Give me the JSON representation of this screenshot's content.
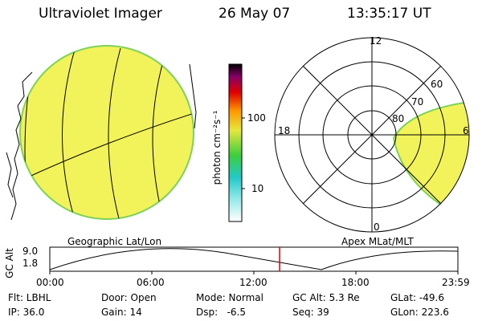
{
  "header": {
    "instrument": "Ultraviolet Imager",
    "date": "26 May 07",
    "time": "13:35:17 UT"
  },
  "colorbar": {
    "label": "photon cm⁻²s⁻¹",
    "ticks": [
      "100",
      "10"
    ]
  },
  "map_labels": {
    "left": "Geographic Lat/Lon",
    "right": "Apex MLat/MLT"
  },
  "polar": {
    "mlt_labels": [
      "12",
      "18",
      "6",
      "0"
    ],
    "lat_labels": [
      "60",
      "70",
      "80"
    ]
  },
  "altitude_plot": {
    "ylabel": "GC Alt",
    "yticks": [
      "9.0",
      "1.8"
    ],
    "xticks": [
      "00:00",
      "06:00",
      "12:00",
      "18:00",
      "23:59"
    ],
    "current_time_marker": "13:35"
  },
  "info": {
    "filter": "Flt: LBHL",
    "ip": "IP: 36.0",
    "door": "Door: Open",
    "gain": "Gain: 14",
    "mode": "Mode: Normal",
    "dsp": "Dsp:   -6.5",
    "gcalt": "GC Alt: 5.3 Re",
    "seq": "Seq: 39",
    "glat": "GLat: -49.6",
    "glon": "GLon: 223.6"
  },
  "colors": {
    "fill": "#f2f25a",
    "edge": "#7ed25a",
    "marker": "#e00000"
  }
}
